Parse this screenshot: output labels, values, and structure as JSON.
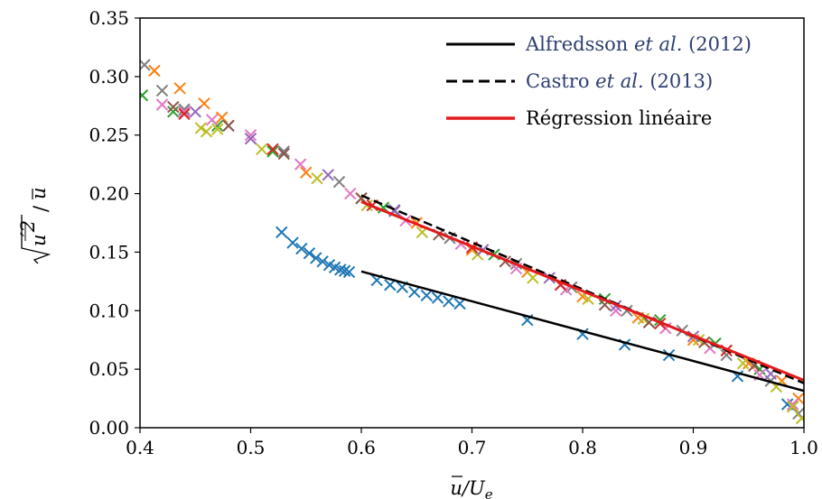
{
  "chart_data": {
    "type": "scatter",
    "title": "",
    "xlabel": "ū/U_e",
    "ylabel": "√(u'²)/ū",
    "xlim": [
      0.4,
      1.0
    ],
    "ylim": [
      0.0,
      0.35
    ],
    "xticks": [
      "0.4",
      "0.5",
      "0.6",
      "0.7",
      "0.8",
      "0.9",
      "1.0"
    ],
    "yticks": [
      "0.00",
      "0.05",
      "0.10",
      "0.15",
      "0.20",
      "0.25",
      "0.30",
      "0.35"
    ],
    "grid": false,
    "legend_position": "top-right",
    "lines": [
      {
        "name": "Alfredsson et al. (2012)",
        "name_plain": "Alfredsson ",
        "name_italic": "et al.",
        "name_tail": " (2012)",
        "color": "#000000",
        "style": "solid",
        "x": [
          0.6,
          1.0
        ],
        "y": [
          0.1335,
          0.0315
        ]
      },
      {
        "name": "Castro et al. (2013)",
        "name_plain": "Castro ",
        "name_italic": "et al.",
        "name_tail": " (2013)",
        "color": "#000000",
        "style": "dashed",
        "x": [
          0.6,
          1.0
        ],
        "y": [
          0.1985,
          0.038
        ]
      },
      {
        "name": "Régression linéaire",
        "name_plain": "Régression linéaire",
        "name_italic": "",
        "name_tail": "",
        "color": "#e31a1c",
        "style": "solid",
        "x": [
          0.6,
          1.0
        ],
        "y": [
          0.193,
          0.0405
        ]
      }
    ],
    "series": [
      {
        "color": "#1f77b4",
        "x": [
          0.528,
          0.538,
          0.546,
          0.553,
          0.559,
          0.565,
          0.571,
          0.576,
          0.581,
          0.585,
          0.589,
          0.614,
          0.626,
          0.637,
          0.648,
          0.659,
          0.669,
          0.679,
          0.689,
          0.75,
          0.8,
          0.838,
          0.878,
          0.94,
          0.985
        ],
        "y": [
          0.167,
          0.158,
          0.153,
          0.149,
          0.145,
          0.142,
          0.139,
          0.137,
          0.135,
          0.134,
          0.133,
          0.126,
          0.122,
          0.12,
          0.116,
          0.113,
          0.111,
          0.108,
          0.106,
          0.092,
          0.08,
          0.071,
          0.062,
          0.044,
          0.02
        ]
      },
      {
        "color": "#ff7f0e",
        "x": [
          0.413,
          0.436,
          0.458,
          0.474,
          0.55,
          0.6,
          0.65,
          0.7,
          0.75,
          0.8,
          0.85,
          0.9,
          0.95,
          0.98,
          0.995
        ],
        "y": [
          0.305,
          0.29,
          0.277,
          0.265,
          0.218,
          0.196,
          0.175,
          0.152,
          0.133,
          0.112,
          0.094,
          0.075,
          0.055,
          0.04,
          0.025
        ]
      },
      {
        "color": "#2ca02c",
        "x": [
          0.402,
          0.43,
          0.47,
          0.52,
          0.62,
          0.72,
          0.82,
          0.87,
          0.92,
          0.96,
          0.99
        ],
        "y": [
          0.284,
          0.27,
          0.258,
          0.236,
          0.188,
          0.148,
          0.11,
          0.092,
          0.072,
          0.05,
          0.018
        ]
      },
      {
        "color": "#7f7f7f",
        "x": [
          0.404,
          0.42,
          0.44,
          0.48,
          0.53,
          0.58,
          0.63,
          0.68,
          0.74,
          0.79,
          0.84,
          0.89,
          0.93,
          0.97,
          0.995
        ],
        "y": [
          0.31,
          0.288,
          0.272,
          0.258,
          0.236,
          0.21,
          0.185,
          0.162,
          0.14,
          0.12,
          0.1,
          0.083,
          0.062,
          0.04,
          0.012
        ]
      },
      {
        "color": "#e377c2",
        "x": [
          0.42,
          0.44,
          0.465,
          0.5,
          0.545,
          0.59,
          0.64,
          0.69,
          0.74,
          0.785,
          0.83,
          0.875,
          0.915,
          0.96,
          0.99
        ],
        "y": [
          0.276,
          0.27,
          0.263,
          0.25,
          0.225,
          0.2,
          0.177,
          0.157,
          0.136,
          0.118,
          0.1,
          0.085,
          0.068,
          0.045,
          0.02
        ]
      },
      {
        "color": "#bcbd22",
        "x": [
          0.455,
          0.46,
          0.47,
          0.51,
          0.56,
          0.605,
          0.655,
          0.705,
          0.755,
          0.805,
          0.855,
          0.905,
          0.945,
          0.975,
          0.99,
          0.998
        ],
        "y": [
          0.256,
          0.253,
          0.255,
          0.238,
          0.213,
          0.19,
          0.167,
          0.148,
          0.128,
          0.11,
          0.093,
          0.075,
          0.055,
          0.035,
          0.018,
          0.008
        ]
      },
      {
        "color": "#8c564b",
        "x": [
          0.43,
          0.48,
          0.53,
          0.6,
          0.67,
          0.73,
          0.82,
          0.86,
          0.91,
          0.955
        ],
        "y": [
          0.274,
          0.258,
          0.234,
          0.196,
          0.165,
          0.142,
          0.105,
          0.09,
          0.073,
          0.053
        ]
      },
      {
        "color": "#9467bd",
        "x": [
          0.45,
          0.5,
          0.57,
          0.63,
          0.71,
          0.77,
          0.83,
          0.9,
          0.97
        ],
        "y": [
          0.27,
          0.247,
          0.216,
          0.186,
          0.152,
          0.128,
          0.104,
          0.078,
          0.046
        ]
      },
      {
        "color": "#d62728",
        "x": [
          0.44,
          0.52,
          0.61,
          0.7,
          0.78,
          0.87,
          0.93
        ],
        "y": [
          0.268,
          0.238,
          0.19,
          0.154,
          0.122,
          0.089,
          0.066
        ]
      }
    ]
  }
}
